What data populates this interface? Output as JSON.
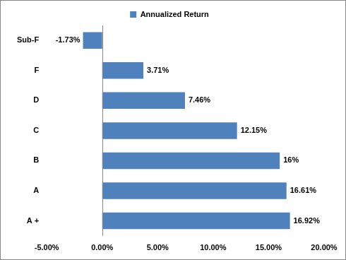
{
  "chart_data": {
    "type": "bar",
    "orientation": "horizontal",
    "categories": [
      "Sub-F",
      "F",
      "D",
      "C",
      "B",
      "A",
      "A +"
    ],
    "series": [
      {
        "name": "Annualized Return",
        "color": "#4f81bd",
        "values": [
          -1.73,
          3.71,
          7.46,
          12.15,
          16,
          16.61,
          16.92
        ],
        "value_labels": [
          "-1.73%",
          "3.71%",
          "7.46%",
          "12.15%",
          "16%",
          "16.61%",
          "16.92%"
        ]
      }
    ],
    "xlim": [
      -5,
      20
    ],
    "xticks": [
      {
        "value": -5,
        "label": "-5.00%"
      },
      {
        "value": 0,
        "label": "0.00%"
      },
      {
        "value": 5,
        "label": "5.00%"
      },
      {
        "value": 10,
        "label": "10.00%"
      },
      {
        "value": 15,
        "label": "15.00%"
      },
      {
        "value": 20,
        "label": "20.00%"
      }
    ],
    "grid": false,
    "legend": "top",
    "data_labels": true
  }
}
